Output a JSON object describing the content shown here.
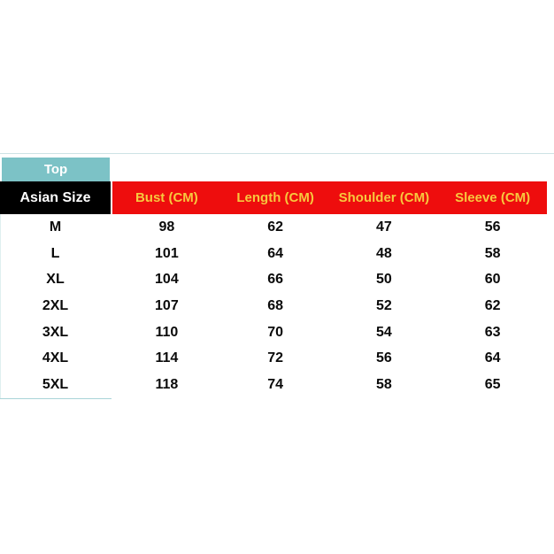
{
  "colors": {
    "teal_header_bg": "#7CC2C6",
    "black_header_bg": "#000000",
    "red_header_bg": "#EE0D0D",
    "header_text_gold": "#F7C83E",
    "top_divider": "#CDE3E5",
    "bottom_border": "#A9D4D8",
    "left_border": "#DFEFF0",
    "body_text": "#0A0A0A",
    "white_text": "#FFFFFF"
  },
  "chart_data": {
    "type": "table",
    "corner_top_label": "Top",
    "corner_bottom_label": "Asian Size",
    "columns": [
      "Bust (CM)",
      "Length (CM)",
      "Shoulder (CM)",
      "Sleeve (CM)"
    ],
    "row_labels": [
      "M",
      "L",
      "XL",
      "2XL",
      "3XL",
      "4XL",
      "5XL"
    ],
    "rows": [
      [
        98,
        62,
        47,
        56
      ],
      [
        101,
        64,
        48,
        58
      ],
      [
        104,
        66,
        50,
        60
      ],
      [
        107,
        68,
        52,
        62
      ],
      [
        110,
        70,
        54,
        63
      ],
      [
        114,
        72,
        56,
        64
      ],
      [
        118,
        74,
        58,
        65
      ]
    ]
  }
}
